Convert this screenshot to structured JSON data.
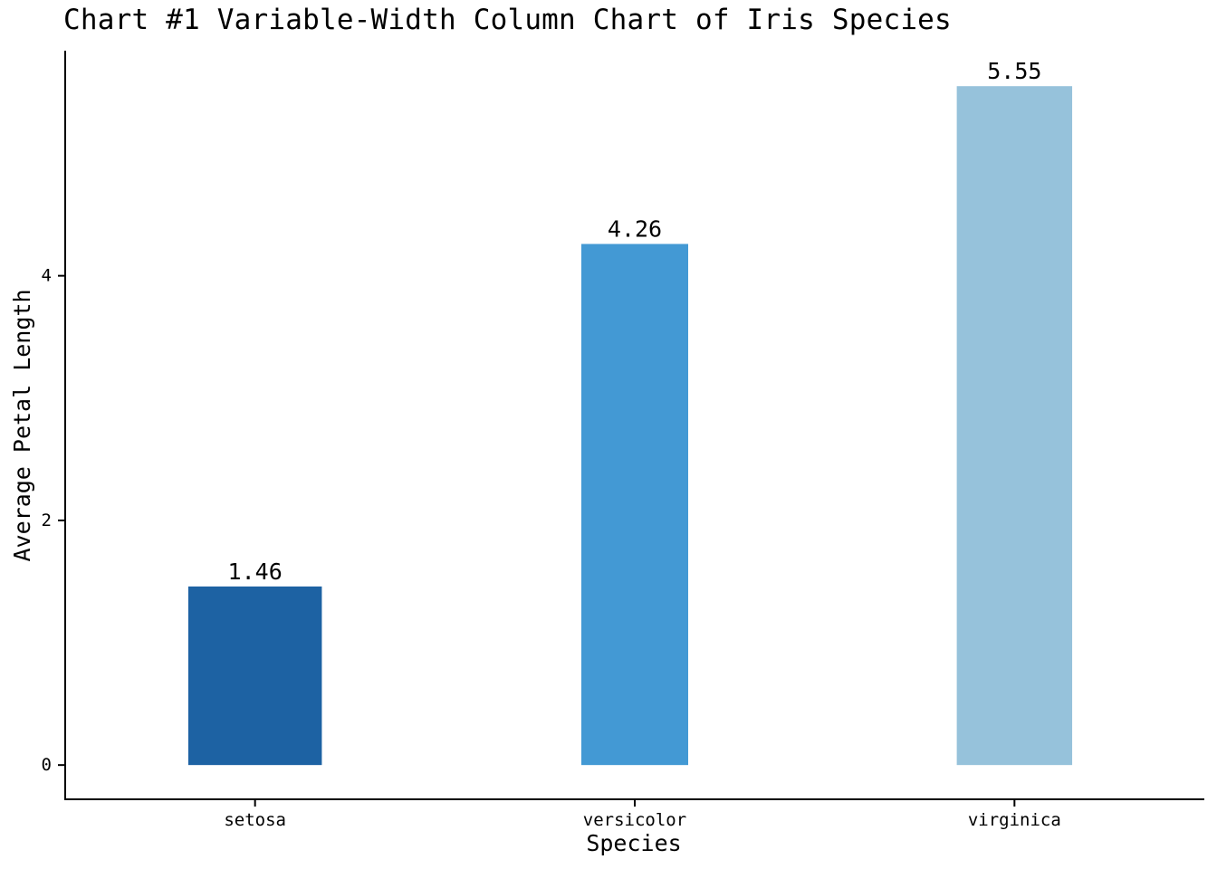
{
  "chart_data": {
    "type": "bar",
    "title": "Chart #1 Variable-Width Column Chart of Iris Species",
    "xlabel": "Species",
    "ylabel": "Average Petal Length",
    "categories": [
      "setosa",
      "versicolor",
      "virginica"
    ],
    "values": [
      1.46,
      4.26,
      5.55
    ],
    "data_labels": [
      "1.46",
      "4.26",
      "5.55"
    ],
    "relative_widths": [
      1.25,
      1.0,
      1.08
    ],
    "colors": [
      "#1D62A3",
      "#4399D4",
      "#96C2DB"
    ],
    "yticks": [
      0,
      2,
      4
    ],
    "ytick_labels": [
      "0",
      "2",
      "4"
    ],
    "ylim": [
      -0.28,
      5.84
    ],
    "grid": false,
    "legend": "none"
  }
}
